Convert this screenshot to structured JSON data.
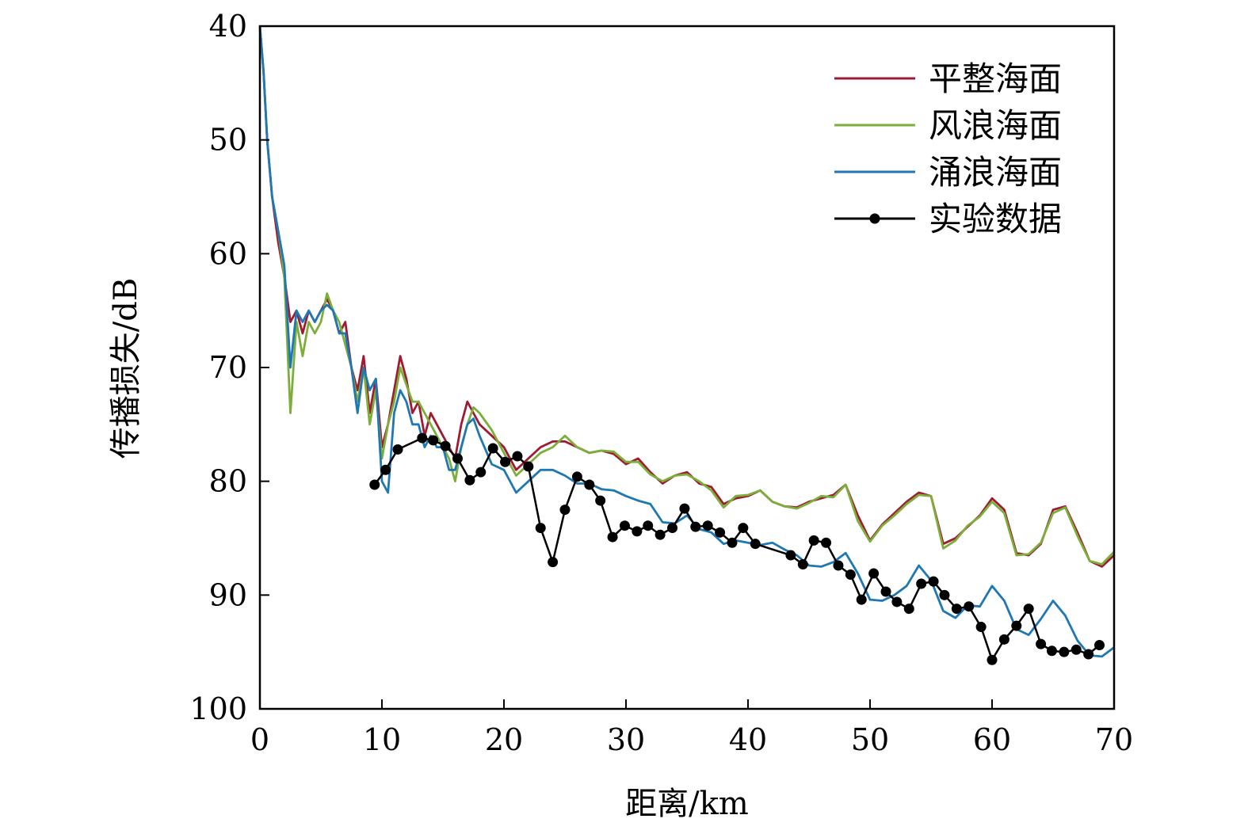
{
  "chart_data": {
    "type": "line",
    "title": "",
    "xlabel": "距离/km",
    "ylabel": "传播损失/dB",
    "xlim": [
      0,
      70
    ],
    "ylim": [
      40,
      100
    ],
    "y_inverted": true,
    "xticks": [
      0,
      10,
      20,
      30,
      40,
      50,
      60,
      70
    ],
    "yticks": [
      40,
      50,
      60,
      70,
      80,
      90,
      100
    ],
    "grid": false,
    "legend_position": "top-right",
    "series": [
      {
        "name": "平整海面",
        "color": "#9e1b32",
        "marker": "none",
        "x": [
          0,
          0.3,
          0.6,
          1,
          1.5,
          2,
          2.5,
          3,
          3.5,
          4,
          4.5,
          5,
          5.5,
          6,
          6.5,
          7,
          7.5,
          8,
          8.5,
          9,
          9.5,
          10,
          10.5,
          11,
          11.5,
          12,
          12.5,
          13,
          13.5,
          14,
          14.5,
          15,
          15.5,
          16,
          16.5,
          17,
          17.5,
          18,
          19,
          20,
          21,
          22,
          23,
          24,
          25,
          26,
          27,
          28,
          29,
          30,
          31,
          32,
          33,
          34,
          35,
          36,
          37,
          38,
          39,
          40,
          41,
          42,
          43,
          44,
          45,
          46,
          47,
          48,
          49,
          50,
          51,
          52,
          53,
          54,
          55,
          56,
          57,
          58,
          59,
          60,
          61,
          62,
          63,
          64,
          65,
          66,
          67,
          68,
          69,
          70
        ],
        "y": [
          40,
          44,
          50,
          55,
          59,
          62,
          66,
          65,
          67,
          65,
          66,
          65,
          64,
          65,
          67,
          66,
          70,
          72,
          69,
          74,
          71,
          77,
          75,
          72,
          69,
          71,
          74,
          73,
          76,
          74,
          75,
          76,
          77,
          78,
          75,
          73,
          74,
          75,
          76,
          77,
          79,
          78,
          77,
          76.5,
          76.5,
          77,
          77.5,
          77.3,
          77.6,
          78.5,
          78,
          79.2,
          80.2,
          79.5,
          79.2,
          80.2,
          80.5,
          82,
          81.5,
          81.3,
          80.8,
          81.8,
          82.2,
          82.3,
          81.8,
          81.5,
          81.2,
          80.3,
          83,
          85.2,
          83.8,
          82.8,
          81.8,
          81,
          81.3,
          85.5,
          85,
          84,
          83,
          81.5,
          82.5,
          86.3,
          86.5,
          85.5,
          82.5,
          82.2,
          84.5,
          87,
          87.5,
          86.5
        ]
      },
      {
        "name": "风浪海面",
        "color": "#7caf3a",
        "marker": "none",
        "x": [
          0,
          0.3,
          0.6,
          1,
          1.5,
          2,
          2.5,
          3,
          3.5,
          4,
          4.5,
          5,
          5.5,
          6,
          6.5,
          7,
          7.5,
          8,
          8.5,
          9,
          9.5,
          10,
          10.5,
          11,
          11.5,
          12,
          12.5,
          13,
          13.5,
          14,
          14.5,
          15,
          15.5,
          16,
          16.5,
          17,
          17.5,
          18,
          19,
          20,
          21,
          22,
          23,
          24,
          25,
          26,
          27,
          28,
          29,
          30,
          31,
          32,
          33,
          34,
          35,
          36,
          37,
          38,
          39,
          40,
          41,
          42,
          43,
          44,
          45,
          46,
          47,
          48,
          49,
          50,
          51,
          52,
          53,
          54,
          55,
          56,
          57,
          58,
          59,
          60,
          61,
          62,
          63,
          64,
          65,
          66,
          67,
          68,
          69,
          70
        ],
        "y": [
          40,
          44,
          50,
          55,
          58,
          62,
          74,
          66,
          69,
          66,
          67,
          66,
          63.5,
          65,
          66,
          68,
          70,
          73,
          70,
          75,
          72,
          78,
          75,
          73,
          70,
          71.5,
          73,
          73,
          74,
          75,
          76,
          77,
          78,
          80,
          77,
          75,
          73.5,
          74,
          75.5,
          77.5,
          79.5,
          78.5,
          77.5,
          77,
          76,
          77,
          77.5,
          77.3,
          77.4,
          78.3,
          78.3,
          79.4,
          80,
          79.5,
          79.4,
          80,
          80.8,
          82.3,
          81.3,
          81.2,
          80.8,
          81.8,
          82.2,
          82.4,
          81.9,
          81.3,
          81.4,
          80.3,
          83.5,
          85.3,
          83.9,
          83,
          82,
          81.2,
          81.3,
          85.9,
          85.2,
          83.9,
          83.1,
          81.8,
          82.8,
          86.5,
          86.4,
          85.4,
          82.8,
          82.3,
          84.8,
          87,
          87.3,
          86.2
        ]
      },
      {
        "name": "涌浪海面",
        "color": "#1f77b4",
        "marker": "none",
        "x": [
          0,
          0.3,
          0.6,
          1,
          1.5,
          2,
          2.5,
          3,
          3.5,
          4,
          4.5,
          5,
          5.5,
          6,
          6.5,
          7,
          7.5,
          8,
          8.5,
          9,
          9.5,
          10,
          10.5,
          11,
          11.5,
          12,
          12.5,
          13,
          13.5,
          14,
          14.5,
          15,
          15.5,
          16,
          16.5,
          17,
          17.5,
          18,
          19,
          20,
          21,
          22,
          23,
          24,
          25,
          26,
          27,
          28,
          29,
          30,
          31,
          32,
          33,
          34,
          35,
          36,
          37,
          38,
          39,
          40,
          41,
          42,
          43,
          44,
          45,
          46,
          47,
          48,
          49,
          50,
          51,
          52,
          53,
          54,
          55,
          56,
          57,
          58,
          59,
          60,
          61,
          62,
          63,
          64,
          65,
          66,
          67,
          68,
          69,
          70
        ],
        "y": [
          40,
          44,
          50,
          55,
          58,
          61,
          70,
          65,
          66,
          65,
          66,
          65,
          64.5,
          65,
          67,
          67,
          70,
          74,
          70,
          72,
          71,
          80,
          81,
          74,
          72,
          73,
          75,
          75,
          77,
          76,
          77,
          77,
          79,
          79,
          77,
          75,
          74.5,
          76,
          78.5,
          79,
          81,
          80,
          79,
          79,
          79.5,
          80.2,
          80.2,
          80.7,
          80.8,
          81.3,
          81.7,
          82,
          83.6,
          83.7,
          83,
          84.2,
          84.5,
          85.5,
          85.2,
          85.4,
          85.6,
          85.4,
          86,
          86.5,
          87.4,
          87.5,
          87.1,
          86.3,
          88.1,
          90.4,
          90.5,
          90,
          89.2,
          87.4,
          88.7,
          91.4,
          92,
          90.9,
          91,
          89.2,
          90.5,
          93,
          93.5,
          92.1,
          90.5,
          91.8,
          94,
          95.3,
          95.4,
          94.6
        ]
      },
      {
        "name": "实验数据",
        "color": "#000000",
        "marker": "circle",
        "x": [
          9.4,
          10.3,
          11.3,
          13.3,
          14.2,
          15.2,
          16.2,
          17.2,
          18.1,
          19.1,
          20.1,
          21.1,
          22,
          23,
          24,
          25,
          26,
          27,
          27.9,
          28.9,
          29.9,
          30.9,
          31.8,
          32.8,
          33.8,
          34.8,
          35.7,
          36.7,
          37.7,
          38.7,
          39.6,
          40.6,
          43.5,
          44.5,
          45.4,
          46.4,
          47.4,
          48.4,
          49.3,
          50.3,
          51.3,
          52.2,
          53.2,
          54.2,
          55.2,
          56.1,
          57.1,
          58.1,
          59.1,
          60,
          61,
          62,
          63,
          64,
          64.9,
          65.9,
          66.9,
          67.9,
          68.8
        ],
        "y": [
          80.3,
          79,
          77.2,
          76.2,
          76.4,
          76.9,
          78,
          79.9,
          79.2,
          77.1,
          78.3,
          77.8,
          78.7,
          84.1,
          87.1,
          82.5,
          79.6,
          80.3,
          81.7,
          84.9,
          83.9,
          84.4,
          83.9,
          84.7,
          84.1,
          82.4,
          84,
          83.9,
          84.5,
          85.4,
          84.1,
          85.5,
          86.5,
          87.3,
          85.2,
          85.4,
          87.4,
          88.2,
          90.4,
          88.1,
          89.7,
          90.6,
          91.2,
          89,
          88.8,
          90,
          91.2,
          91,
          92.8,
          95.7,
          93.9,
          92.7,
          91.2,
          94.3,
          94.9,
          95,
          94.8,
          95.2,
          94.4
        ]
      }
    ]
  }
}
